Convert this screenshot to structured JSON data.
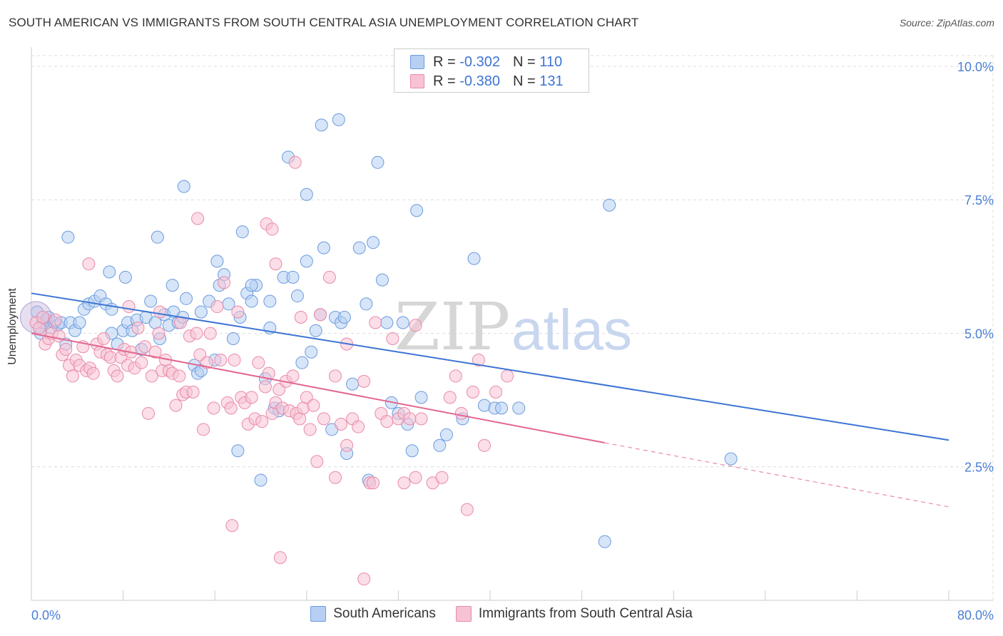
{
  "title": "SOUTH AMERICAN VS IMMIGRANTS FROM SOUTH CENTRAL ASIA UNEMPLOYMENT CORRELATION CHART",
  "source": "Source: ZipAtlas.com",
  "watermark": {
    "part1": "ZIP",
    "part2": "atlas"
  },
  "legend": {
    "rows": [
      {
        "r_label": "R =",
        "r_value": "-0.302",
        "n_label": "N =",
        "n_value": "110",
        "color": "#6b9be0",
        "fill": "#b7cff3"
      },
      {
        "r_label": "R =",
        "r_value": "-0.380",
        "n_label": "N =",
        "n_value": "131",
        "color": "#e98aa9",
        "fill": "#f7c3d3"
      }
    ]
  },
  "bottom_legend": [
    {
      "label": "South Americans",
      "color": "#6b9be0",
      "fill": "#b7cff3"
    },
    {
      "label": "Immigrants from South Central Asia",
      "color": "#e98aa9",
      "fill": "#f7c3d3"
    }
  ],
  "chart_data": {
    "type": "scatter",
    "title": "SOUTH AMERICAN VS IMMIGRANTS FROM SOUTH CENTRAL ASIA UNEMPLOYMENT CORRELATION CHART",
    "xlabel": "",
    "ylabel": "Unemployment",
    "xlim": [
      0,
      80
    ],
    "ylim": [
      0,
      10.2
    ],
    "x_tick_labels": [
      "0.0%",
      "80.0%"
    ],
    "y_ticks": [
      2.5,
      5.0,
      7.5,
      10.0
    ],
    "y_tick_labels": [
      "2.5%",
      "5.0%",
      "7.5%",
      "10.0%"
    ],
    "grid": true,
    "legend_position": "top-center",
    "series": [
      {
        "name": "South Americans",
        "color": "#6b9be0",
        "fill": "#b7cff3",
        "trend": {
          "x": [
            0,
            80
          ],
          "y": [
            5.75,
            3.0
          ]
        },
        "points": [
          [
            0.5,
            5.4
          ],
          [
            0.8,
            5.0
          ],
          [
            1.0,
            5.2
          ],
          [
            1.3,
            5.25
          ],
          [
            1.5,
            5.3
          ],
          [
            1.7,
            5.1
          ],
          [
            2.0,
            5.2
          ],
          [
            2.3,
            5.15
          ],
          [
            2.6,
            5.2
          ],
          [
            3.0,
            4.8
          ],
          [
            3.4,
            5.2
          ],
          [
            3.8,
            5.05
          ],
          [
            4.2,
            5.2
          ],
          [
            4.6,
            5.45
          ],
          [
            5.0,
            5.55
          ],
          [
            5.5,
            5.6
          ],
          [
            6.0,
            5.7
          ],
          [
            6.5,
            5.55
          ],
          [
            7.0,
            5.45
          ],
          [
            7.5,
            4.8
          ],
          [
            8.0,
            5.05
          ],
          [
            8.4,
            5.2
          ],
          [
            8.8,
            5.05
          ],
          [
            9.2,
            5.25
          ],
          [
            9.6,
            4.7
          ],
          [
            10.0,
            5.3
          ],
          [
            10.4,
            5.6
          ],
          [
            10.8,
            5.2
          ],
          [
            11.2,
            4.9
          ],
          [
            11.6,
            5.35
          ],
          [
            12.0,
            5.15
          ],
          [
            12.4,
            5.4
          ],
          [
            12.8,
            5.2
          ],
          [
            13.2,
            5.3
          ],
          [
            13.5,
            5.65
          ],
          [
            14.2,
            4.4
          ],
          [
            14.5,
            4.25
          ],
          [
            14.8,
            4.3
          ],
          [
            15.5,
            5.6
          ],
          [
            16.0,
            4.5
          ],
          [
            16.4,
            5.9
          ],
          [
            16.8,
            6.1
          ],
          [
            17.2,
            5.55
          ],
          [
            17.6,
            4.9
          ],
          [
            18.0,
            2.8
          ],
          [
            18.4,
            6.9
          ],
          [
            18.8,
            5.75
          ],
          [
            19.2,
            5.6
          ],
          [
            19.6,
            5.9
          ],
          [
            20.0,
            2.25
          ],
          [
            20.4,
            4.15
          ],
          [
            20.8,
            5.6
          ],
          [
            21.2,
            3.6
          ],
          [
            21.6,
            3.55
          ],
          [
            22.0,
            6.05
          ],
          [
            22.4,
            8.3
          ],
          [
            22.8,
            6.05
          ],
          [
            23.2,
            5.7
          ],
          [
            23.6,
            4.45
          ],
          [
            24.0,
            7.6
          ],
          [
            24.4,
            4.65
          ],
          [
            24.8,
            5.05
          ],
          [
            25.2,
            5.35
          ],
          [
            25.5,
            6.6
          ],
          [
            26.2,
            3.2
          ],
          [
            26.5,
            5.3
          ],
          [
            27.0,
            5.2
          ],
          [
            27.5,
            2.75
          ],
          [
            28.0,
            4.05
          ],
          [
            28.6,
            6.6
          ],
          [
            29.2,
            5.55
          ],
          [
            29.8,
            6.7
          ],
          [
            30.2,
            8.2
          ],
          [
            30.6,
            6.0
          ],
          [
            31.0,
            5.2
          ],
          [
            31.4,
            3.7
          ],
          [
            32.0,
            3.5
          ],
          [
            32.4,
            5.2
          ],
          [
            32.8,
            3.3
          ],
          [
            33.2,
            2.8
          ],
          [
            33.6,
            7.3
          ],
          [
            34.0,
            3.8
          ],
          [
            35.6,
            2.9
          ],
          [
            36.2,
            3.1
          ],
          [
            37.6,
            3.4
          ],
          [
            38.6,
            6.4
          ],
          [
            39.5,
            3.65
          ],
          [
            40.4,
            3.6
          ],
          [
            41.0,
            3.6
          ],
          [
            42.5,
            3.6
          ],
          [
            50.0,
            1.1
          ],
          [
            50.4,
            7.4
          ],
          [
            61.0,
            2.65
          ],
          [
            3.2,
            6.8
          ],
          [
            6.8,
            6.15
          ],
          [
            8.2,
            6.05
          ],
          [
            11.0,
            6.8
          ],
          [
            12.3,
            5.9
          ],
          [
            13.3,
            7.75
          ],
          [
            16.2,
            6.35
          ],
          [
            25.3,
            8.9
          ],
          [
            20.8,
            5.1
          ],
          [
            27.3,
            5.3
          ],
          [
            18.2,
            5.3
          ],
          [
            24.0,
            6.35
          ],
          [
            29.4,
            2.25
          ],
          [
            26.8,
            9.0
          ],
          [
            7.0,
            5.0
          ],
          [
            14.8,
            5.4
          ],
          [
            19.2,
            5.9
          ]
        ]
      },
      {
        "name": "Immigrants from South Central Asia",
        "color": "#e98aa9",
        "fill": "#f7c3d3",
        "trend": {
          "x": [
            0,
            50
          ],
          "y": [
            5.0,
            2.95
          ]
        },
        "trend_dashed": {
          "x": [
            50,
            80
          ],
          "y": [
            2.95,
            1.75
          ]
        },
        "points": [
          [
            0.4,
            5.2
          ],
          [
            0.7,
            5.1
          ],
          [
            1.0,
            5.3
          ],
          [
            1.2,
            4.8
          ],
          [
            1.5,
            4.9
          ],
          [
            1.8,
            5.0
          ],
          [
            2.1,
            5.25
          ],
          [
            2.4,
            4.95
          ],
          [
            2.7,
            4.6
          ],
          [
            3.0,
            4.7
          ],
          [
            3.3,
            4.4
          ],
          [
            3.6,
            4.2
          ],
          [
            3.9,
            4.5
          ],
          [
            4.2,
            4.4
          ],
          [
            4.5,
            4.75
          ],
          [
            4.8,
            4.3
          ],
          [
            5.1,
            4.35
          ],
          [
            5.4,
            4.25
          ],
          [
            5.7,
            4.8
          ],
          [
            6.0,
            4.65
          ],
          [
            6.3,
            4.9
          ],
          [
            6.6,
            4.6
          ],
          [
            6.9,
            4.55
          ],
          [
            7.2,
            4.3
          ],
          [
            7.5,
            4.2
          ],
          [
            7.8,
            4.55
          ],
          [
            8.1,
            4.7
          ],
          [
            8.4,
            4.4
          ],
          [
            8.7,
            4.65
          ],
          [
            9.0,
            4.35
          ],
          [
            9.3,
            5.1
          ],
          [
            9.6,
            4.45
          ],
          [
            9.9,
            4.75
          ],
          [
            10.2,
            3.5
          ],
          [
            10.5,
            4.2
          ],
          [
            10.8,
            4.65
          ],
          [
            11.1,
            5.0
          ],
          [
            11.4,
            4.3
          ],
          [
            11.7,
            4.5
          ],
          [
            12.0,
            4.3
          ],
          [
            12.3,
            4.25
          ],
          [
            12.6,
            3.65
          ],
          [
            12.9,
            4.2
          ],
          [
            13.2,
            3.85
          ],
          [
            13.5,
            3.9
          ],
          [
            13.8,
            4.95
          ],
          [
            14.1,
            3.9
          ],
          [
            14.4,
            5.0
          ],
          [
            14.7,
            4.6
          ],
          [
            15.0,
            3.2
          ],
          [
            15.3,
            4.45
          ],
          [
            15.6,
            5.0
          ],
          [
            15.9,
            3.6
          ],
          [
            16.2,
            5.5
          ],
          [
            16.5,
            4.5
          ],
          [
            16.8,
            5.95
          ],
          [
            17.1,
            3.7
          ],
          [
            17.4,
            3.6
          ],
          [
            17.7,
            4.5
          ],
          [
            18.0,
            5.4
          ],
          [
            18.3,
            3.8
          ],
          [
            18.6,
            3.7
          ],
          [
            18.9,
            3.3
          ],
          [
            19.2,
            3.8
          ],
          [
            19.5,
            3.4
          ],
          [
            19.8,
            4.45
          ],
          [
            20.1,
            3.35
          ],
          [
            20.4,
            4.0
          ],
          [
            20.7,
            4.25
          ],
          [
            21.0,
            3.5
          ],
          [
            21.3,
            3.7
          ],
          [
            21.6,
            3.95
          ],
          [
            21.9,
            3.6
          ],
          [
            22.2,
            4.1
          ],
          [
            22.5,
            3.55
          ],
          [
            22.8,
            4.2
          ],
          [
            23.1,
            3.5
          ],
          [
            23.4,
            3.4
          ],
          [
            23.7,
            3.6
          ],
          [
            24.0,
            3.8
          ],
          [
            24.3,
            3.2
          ],
          [
            24.6,
            3.65
          ],
          [
            24.9,
            2.6
          ],
          [
            25.2,
            5.35
          ],
          [
            25.5,
            3.4
          ],
          [
            26.0,
            6.05
          ],
          [
            26.5,
            4.2
          ],
          [
            27.0,
            3.3
          ],
          [
            27.5,
            2.9
          ],
          [
            28.0,
            3.4
          ],
          [
            28.5,
            3.25
          ],
          [
            29.0,
            4.1
          ],
          [
            29.5,
            2.2
          ],
          [
            30.0,
            5.2
          ],
          [
            30.5,
            3.5
          ],
          [
            31.0,
            3.35
          ],
          [
            31.5,
            4.9
          ],
          [
            32.0,
            3.4
          ],
          [
            32.5,
            3.5
          ],
          [
            33.0,
            3.4
          ],
          [
            34.0,
            3.4
          ],
          [
            35.0,
            2.2
          ],
          [
            35.8,
            2.3
          ],
          [
            36.5,
            3.8
          ],
          [
            37.0,
            4.2
          ],
          [
            37.5,
            3.5
          ],
          [
            38.0,
            1.7
          ],
          [
            38.5,
            3.9
          ],
          [
            39.0,
            4.5
          ],
          [
            39.5,
            2.9
          ],
          [
            40.5,
            3.9
          ],
          [
            41.5,
            4.2
          ],
          [
            5.0,
            6.3
          ],
          [
            8.5,
            5.5
          ],
          [
            13.0,
            5.2
          ],
          [
            14.5,
            7.15
          ],
          [
            20.5,
            7.05
          ],
          [
            21.0,
            6.95
          ],
          [
            21.3,
            6.3
          ],
          [
            23.0,
            8.2
          ],
          [
            17.5,
            1.4
          ],
          [
            21.7,
            0.8
          ],
          [
            29.0,
            0.4
          ],
          [
            26.5,
            2.3
          ],
          [
            29.8,
            2.2
          ],
          [
            33.5,
            2.3
          ],
          [
            32.5,
            2.2
          ],
          [
            33.5,
            5.15
          ],
          [
            23.5,
            5.3
          ],
          [
            11.2,
            5.4
          ],
          [
            27.5,
            4.8
          ]
        ]
      }
    ]
  }
}
